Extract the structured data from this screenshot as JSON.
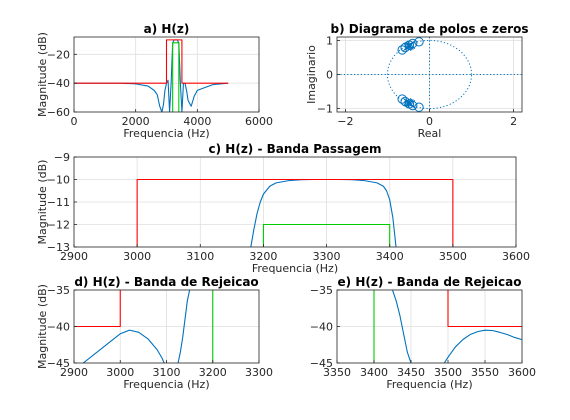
{
  "colors": {
    "response": "#0072bd",
    "template_red": "#ff0000",
    "template_green": "#00cc00"
  },
  "chart_data": [
    {
      "id": "a",
      "type": "line",
      "title": "a) H(z)",
      "xlabel": "Frequencia (Hz)",
      "ylabel": "Magnitude (dB)",
      "xlim": [
        0,
        6000
      ],
      "ylim": [
        -60,
        -8
      ],
      "xticks": [
        0,
        2000,
        4000,
        6000
      ],
      "yticks": [
        -60,
        -40,
        -20
      ],
      "grid": true,
      "series": [
        {
          "role": "response",
          "color": "#0072bd",
          "x": [
            0,
            500,
            1000,
            1500,
            2000,
            2400,
            2600,
            2700,
            2780,
            2850,
            2900,
            2950,
            3000,
            3050,
            3100,
            3150,
            3200,
            3250,
            3300,
            3350,
            3400,
            3450,
            3500,
            3550,
            3600,
            3650,
            3700,
            3800,
            3900,
            4000,
            4500,
            5000
          ],
          "y": [
            -40,
            -40,
            -40,
            -40,
            -40.5,
            -42,
            -45,
            -48,
            -56,
            -60,
            -55,
            -45,
            -40,
            -38,
            -60,
            -40,
            -12,
            -10,
            -10,
            -10,
            -12,
            -40,
            -60,
            -40,
            -40,
            -45,
            -52,
            -56,
            -49,
            -45,
            -41,
            -40
          ]
        },
        {
          "role": "template",
          "color": "#ff0000",
          "x": [
            0,
            3000,
            3000,
            3500,
            3500,
            5000
          ],
          "y": [
            -40,
            -40,
            -10,
            -10,
            -40,
            -40
          ]
        },
        {
          "role": "template",
          "color": "#00cc00",
          "x": [
            3200,
            3200,
            3400,
            3400
          ],
          "y": [
            -60,
            -12,
            -12,
            -60
          ]
        }
      ]
    },
    {
      "id": "b",
      "type": "scatter",
      "title": "b) Diagrama de polos e zeros",
      "xlabel": "Real",
      "ylabel": "Imaginario",
      "xlim": [
        -2.2,
        2.2
      ],
      "ylim": [
        -1.1,
        1.1
      ],
      "xticks": [
        -2,
        0,
        2
      ],
      "yticks": [
        -1,
        0,
        1
      ],
      "grid": true,
      "unit_circle": true,
      "zeros": [
        [
          -0.65,
          0.72
        ],
        [
          -0.58,
          0.79
        ],
        [
          -0.48,
          0.86
        ],
        [
          -0.4,
          0.91
        ],
        [
          -0.25,
          0.96
        ],
        [
          -0.65,
          -0.72
        ],
        [
          -0.58,
          -0.79
        ],
        [
          -0.48,
          -0.86
        ],
        [
          -0.4,
          -0.91
        ],
        [
          -0.25,
          -0.96
        ]
      ],
      "poles": [
        [
          -0.53,
          0.81
        ],
        [
          -0.5,
          0.83
        ],
        [
          -0.47,
          0.85
        ],
        [
          -0.44,
          0.87
        ],
        [
          -0.53,
          -0.81
        ],
        [
          -0.5,
          -0.83
        ],
        [
          -0.47,
          -0.85
        ],
        [
          -0.44,
          -0.87
        ]
      ]
    },
    {
      "id": "c",
      "type": "line",
      "title": "c) H(z) - Banda Passagem",
      "xlabel": "Frequencia (Hz)",
      "ylabel": "Magnitude (dB)",
      "xlim": [
        2900,
        3600
      ],
      "ylim": [
        -13,
        -9
      ],
      "xticks": [
        2900,
        3000,
        3100,
        3200,
        3300,
        3400,
        3500,
        3600
      ],
      "yticks": [
        -13,
        -12,
        -11,
        -10,
        -9
      ],
      "grid": true,
      "series": [
        {
          "role": "response",
          "color": "#0072bd",
          "x": [
            3180,
            3185,
            3190,
            3195,
            3200,
            3210,
            3220,
            3240,
            3260,
            3280,
            3300,
            3320,
            3340,
            3360,
            3380,
            3390,
            3395,
            3400,
            3405,
            3410
          ],
          "y": [
            -13,
            -12.2,
            -11.5,
            -11.0,
            -10.65,
            -10.3,
            -10.15,
            -10.05,
            -10.01,
            -10.0,
            -10.0,
            -10.0,
            -10.01,
            -10.05,
            -10.15,
            -10.3,
            -10.5,
            -10.9,
            -11.7,
            -13
          ]
        },
        {
          "role": "template",
          "color": "#ff0000",
          "x": [
            3000,
            3000,
            3500,
            3500
          ],
          "y": [
            -13,
            -10,
            -10,
            -13
          ]
        },
        {
          "role": "template",
          "color": "#00cc00",
          "x": [
            3200,
            3200,
            3400,
            3400
          ],
          "y": [
            -13,
            -12,
            -12,
            -13
          ]
        }
      ]
    },
    {
      "id": "d",
      "type": "line",
      "title": "d) H(z) - Banda de Rejeicao",
      "xlabel": "Frequencia (Hz)",
      "ylabel": "Magnitude (dB)",
      "xlim": [
        2900,
        3300
      ],
      "ylim": [
        -45,
        -35
      ],
      "xticks": [
        2900,
        3000,
        3100,
        3200,
        3300
      ],
      "yticks": [
        -45,
        -40,
        -35
      ],
      "grid": true,
      "series": [
        {
          "role": "response",
          "color": "#0072bd",
          "x": [
            2920,
            2950,
            2980,
            3000,
            3020,
            3040,
            3060,
            3080,
            3090,
            3095
          ],
          "y": [
            -45,
            -43.5,
            -42,
            -41,
            -40.5,
            -40.8,
            -41.7,
            -43.2,
            -44.3,
            -45
          ]
        },
        {
          "role": "response",
          "color": "#0072bd",
          "x": [
            3125,
            3130,
            3135,
            3140,
            3145,
            3150
          ],
          "y": [
            -45,
            -43.5,
            -41.5,
            -39,
            -36.5,
            -35
          ]
        },
        {
          "role": "template",
          "color": "#ff0000",
          "x": [
            2900,
            3000,
            3000
          ],
          "y": [
            -40,
            -40,
            -35
          ]
        },
        {
          "role": "template",
          "color": "#00cc00",
          "x": [
            3200,
            3200
          ],
          "y": [
            -45,
            -35
          ]
        }
      ]
    },
    {
      "id": "e",
      "type": "line",
      "title": "e) H(z) - Banda de Rejeicao",
      "xlabel": "Frequencia (Hz)",
      "ylabel": "",
      "xlim": [
        3350,
        3600
      ],
      "ylim": [
        -45,
        -35
      ],
      "xticks": [
        3350,
        3400,
        3450,
        3500,
        3550,
        3600
      ],
      "yticks": [
        -45,
        -40,
        -35
      ],
      "grid": true,
      "series": [
        {
          "role": "response",
          "color": "#0072bd",
          "x": [
            3425,
            3430,
            3435,
            3440,
            3445,
            3450
          ],
          "y": [
            -35,
            -36.5,
            -38.5,
            -41,
            -43.5,
            -45
          ]
        },
        {
          "role": "response",
          "color": "#0072bd",
          "x": [
            3495,
            3500,
            3510,
            3520,
            3530,
            3540,
            3550,
            3560,
            3570,
            3580,
            3590,
            3600
          ],
          "y": [
            -45,
            -44.2,
            -42.8,
            -41.8,
            -41.1,
            -40.7,
            -40.5,
            -40.55,
            -40.8,
            -41.1,
            -41.5,
            -41.8
          ]
        },
        {
          "role": "template",
          "color": "#ff0000",
          "x": [
            3500,
            3500,
            3600
          ],
          "y": [
            -35,
            -40,
            -40
          ]
        },
        {
          "role": "template",
          "color": "#00cc00",
          "x": [
            3400,
            3400
          ],
          "y": [
            -45,
            -35
          ]
        }
      ]
    }
  ]
}
